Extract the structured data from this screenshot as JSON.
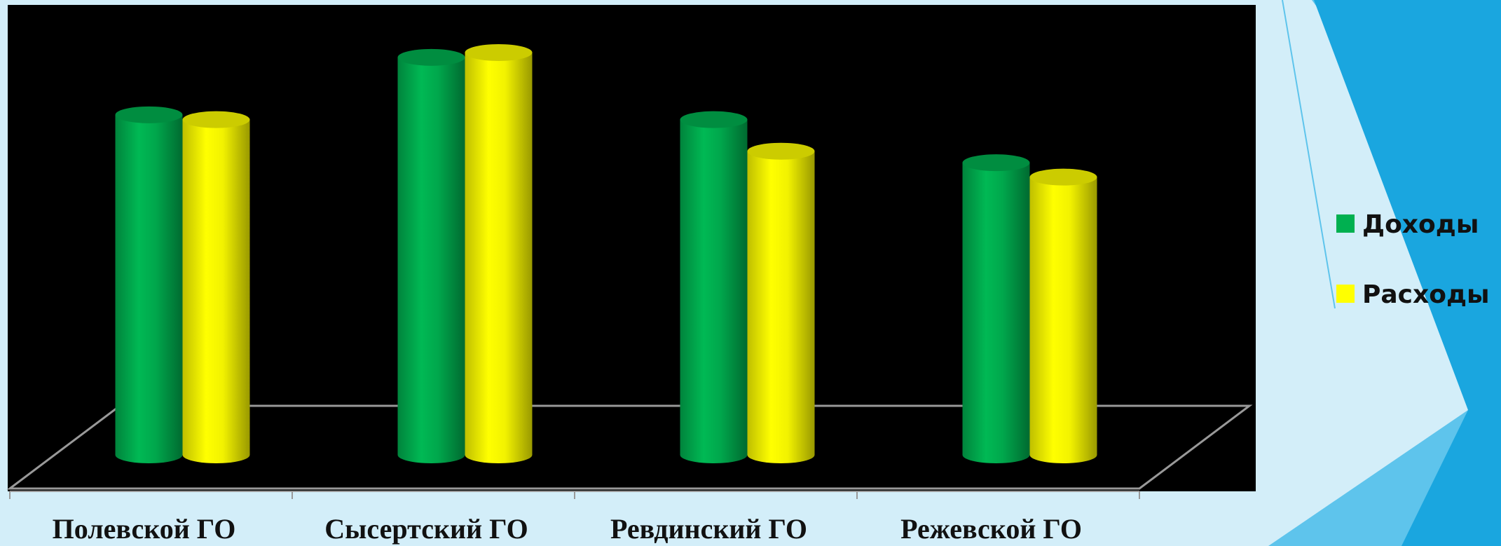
{
  "chart_data": {
    "type": "bar3d",
    "categories": [
      "Полевской ГО",
      "Сысертский  ГО",
      "Ревдинский ГО",
      "Режевской ГО"
    ],
    "series": [
      {
        "name": "Доходы",
        "color": "#00b050",
        "values": [
          355,
          415,
          350,
          305
        ]
      },
      {
        "name": "Расходы",
        "color": "#ffff00",
        "values": [
          350,
          420,
          317,
          290
        ]
      }
    ],
    "ylim": [
      0,
      450
    ]
  }
}
